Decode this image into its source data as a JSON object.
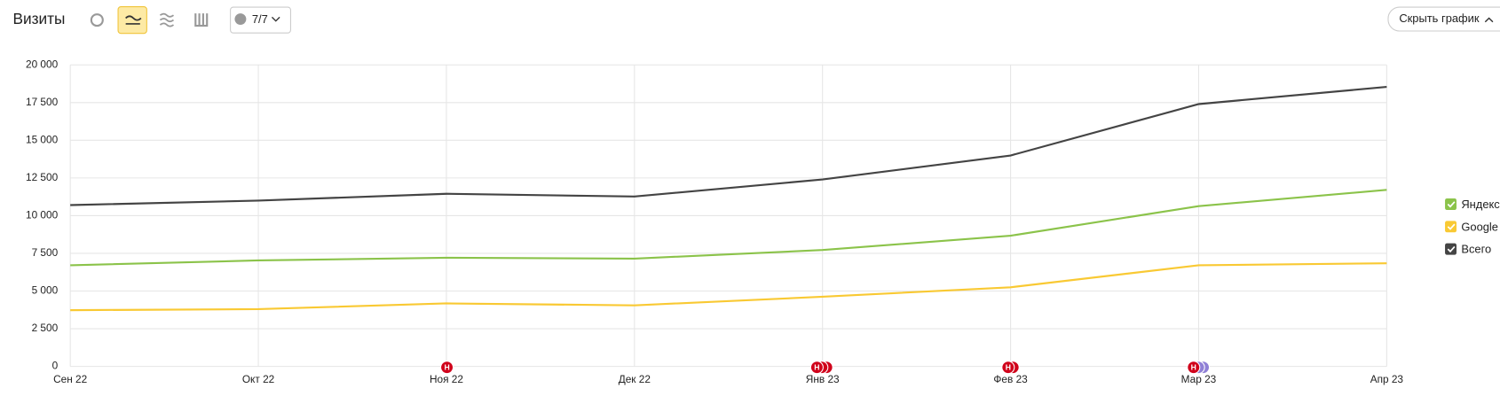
{
  "toolbar": {
    "title": "Визиты",
    "notes_filter": "7/7",
    "hide_button": "Скрыть график"
  },
  "chart_data": {
    "type": "line",
    "categories": [
      "Сен 22",
      "Окт 22",
      "Ноя 22",
      "Дек 22",
      "Янв 23",
      "Фев 23",
      "Мар 23",
      "Апр 23"
    ],
    "series": [
      {
        "name": "Яндекс",
        "color": "#8bc34a",
        "values": [
          6710,
          7030,
          7210,
          7150,
          7720,
          8670,
          10630,
          11710
        ]
      },
      {
        "name": "Google",
        "color": "#f9c933",
        "values": [
          3730,
          3800,
          4180,
          4050,
          4620,
          5250,
          6710,
          6840
        ]
      },
      {
        "name": "Всего",
        "color": "#444444",
        "values": [
          10700,
          11000,
          11450,
          11270,
          12400,
          13990,
          17400,
          18540
        ]
      }
    ],
    "ylim": [
      0,
      20000
    ],
    "yticks": [
      0,
      {
        "value": 2500,
        "label": "2 500"
      },
      {
        "value": 5000,
        "label": "5 000"
      },
      {
        "value": 7500,
        "label": "7 500"
      },
      {
        "value": 10000,
        "label": "10 000"
      },
      {
        "value": 12500,
        "label": "12 500"
      },
      {
        "value": 15000,
        "label": "15 000"
      },
      {
        "value": 17500,
        "label": "17 500"
      },
      {
        "value": 20000,
        "label": "20 000"
      }
    ],
    "grid": true,
    "legend": "right",
    "annotations": [
      "Н",
      "Н",
      "Н",
      "Н"
    ]
  }
}
